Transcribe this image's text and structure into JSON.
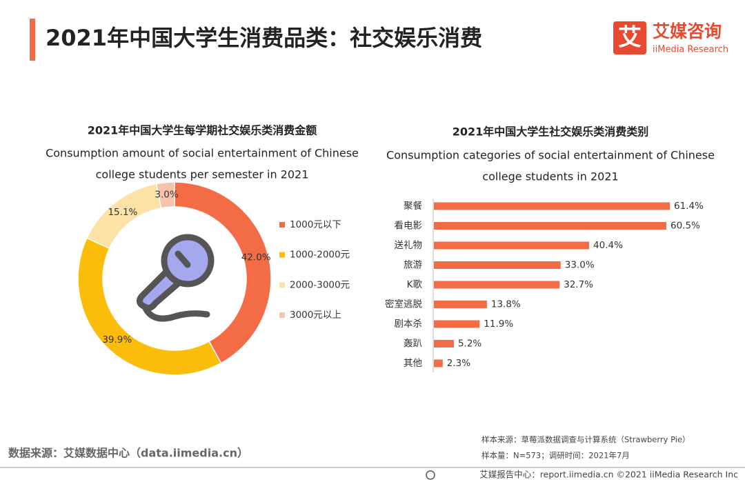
{
  "header": {
    "title": "2021年中国大学生消费品类：社交娱乐消费",
    "logo_mark": "艾",
    "logo_cn": "艾媒咨询",
    "logo_en": "iiMedia Research"
  },
  "chart_data": [
    {
      "type": "donut",
      "title": "2021年中国大学生每学期社交娱乐类消费金额",
      "subtitle": [
        "Consumption amount of social entertainment of Chinese",
        "college students per semester in 2021"
      ],
      "categories": [
        "1000元以下",
        "1000-2000元",
        "2000-3000元",
        "3000元以上"
      ],
      "values": [
        42.0,
        39.9,
        15.1,
        3.0
      ],
      "value_labels": [
        "42.0%",
        "39.9%",
        "15.1%",
        "3.0%"
      ],
      "colors": [
        "#f46c45",
        "#fbbd0a",
        "#fce2a6",
        "#f6c3ad"
      ]
    },
    {
      "type": "hbar",
      "title": "2021年中国大学生社交娱乐类消费类别",
      "subtitle": [
        "Consumption categories of social entertainment of Chinese",
        "college students in 2021"
      ],
      "categories": [
        "聚餐",
        "看电影",
        "送礼物",
        "旅游",
        "K歌",
        "密室逃脱",
        "剧本杀",
        "轰趴",
        "其他"
      ],
      "values": [
        61.4,
        60.5,
        40.4,
        33.0,
        32.7,
        13.8,
        11.9,
        5.2,
        2.3
      ],
      "value_labels": [
        "61.4%",
        "60.5%",
        "40.4%",
        "33.0%",
        "32.7%",
        "13.8%",
        "11.9%",
        "5.2%",
        "2.3%"
      ],
      "color": "#f46c45"
    }
  ],
  "footer": {
    "source": "数据来源：艾媒数据中心（data.iimedia.cn）",
    "sample_source": "样本来源：草莓派数据调查与计算系统（Strawberry Pie）",
    "sample_size": "样本量：N=573；调研时间：2021年7月",
    "copyright": "艾媒报告中心：report.iimedia.cn  ©2021  iiMedia Research Inc"
  }
}
